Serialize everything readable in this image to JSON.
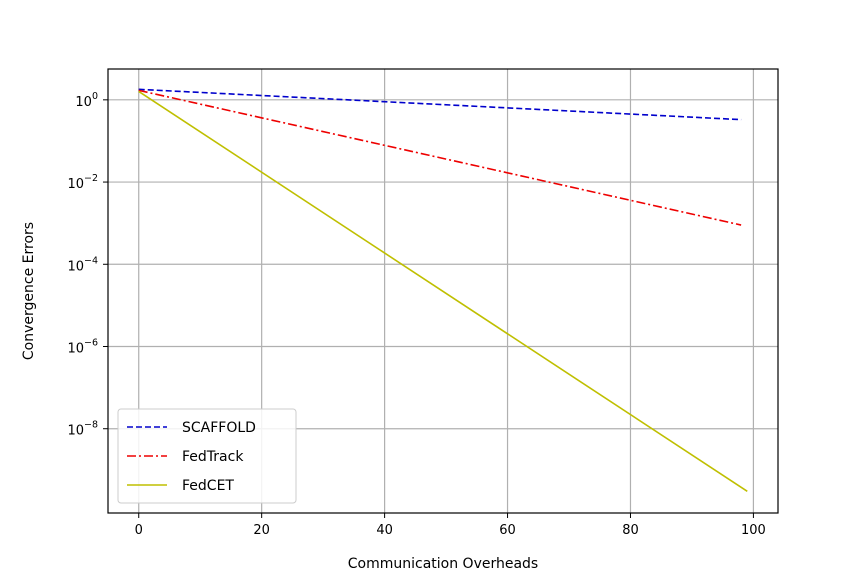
{
  "chart_data": {
    "type": "line",
    "xlabel": "Communication Overheads",
    "ylabel": "Convergence Errors",
    "xlim": [
      -5,
      104
    ],
    "ylim_log10": [
      -10.05,
      0.75
    ],
    "yscale": "log",
    "xticks": [
      0,
      20,
      40,
      60,
      80,
      100
    ],
    "xtick_labels": [
      "0",
      "20",
      "40",
      "60",
      "80",
      "100"
    ],
    "yticks_log10": [
      0,
      -2,
      -4,
      -6,
      -8
    ],
    "ytick_base": "10",
    "ytick_exponents": [
      "0",
      "−2",
      "−4",
      "−6",
      "−8"
    ],
    "grid": true,
    "legend_position": "lower-left",
    "series": [
      {
        "name": "SCAFFOLD",
        "color": "#0000cc",
        "dash": "dashed",
        "x": [
          0,
          98
        ],
        "y": [
          1.8,
          0.33
        ]
      },
      {
        "name": "FedTrack",
        "color": "#ee0000",
        "dash": "dashdot",
        "x": [
          0,
          98
        ],
        "y": [
          1.7,
          0.0009
        ]
      },
      {
        "name": "FedCET",
        "color": "#bfbf00",
        "dash": "solid",
        "x": [
          0,
          99
        ],
        "y": [
          1.6,
          3e-10
        ]
      }
    ]
  }
}
